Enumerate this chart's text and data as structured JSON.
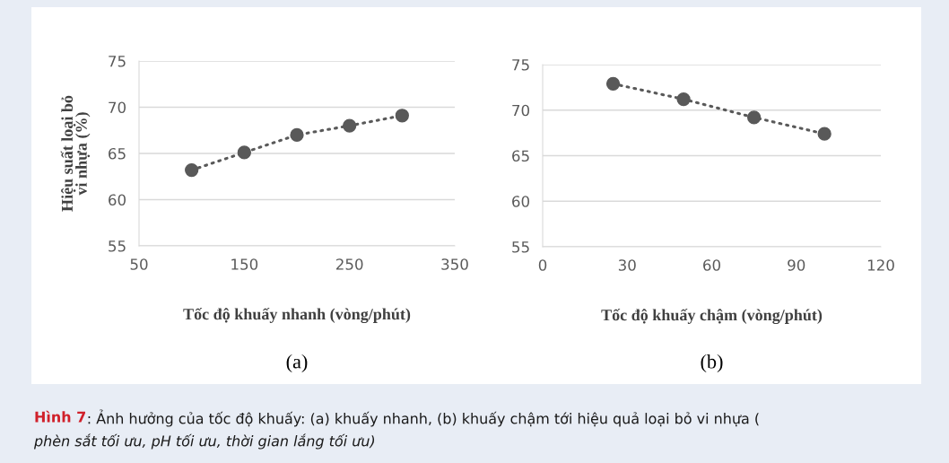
{
  "chart_data": [
    {
      "type": "line",
      "xlabel": "Tốc độ khuấy nhanh (vòng/phút)",
      "ylabel": "Hiệu suất loại bỏ\nvi nhựa (%)",
      "x": [
        100,
        150,
        200,
        250,
        300
      ],
      "series": [
        {
          "color": "#595959",
          "values": [
            63.2,
            65.1,
            67.0,
            68.0,
            69.1
          ],
          "marker": "circle",
          "line_style": "dotted"
        }
      ],
      "xlim": [
        50,
        350
      ],
      "xticks": [
        50,
        150,
        250,
        350
      ],
      "ylim": [
        55,
        75
      ],
      "yticks": [
        55,
        60,
        65,
        70,
        75
      ],
      "grid": "y",
      "annotations": [
        "(a)",
        "Hình 7",
        ": Ảnh hưởng của tốc độ khuấy: (a) khuấy nhanh, (b) khuấy chậm tới hiệu quả loại bỏ vi nhựa (",
        "phèn sắt tối ưu, pH tối ưu, thời gian lắng tối ưu)"
      ]
    },
    {
      "type": "line",
      "xlabel": "Tốc độ khuấy chậm (vòng/phút)",
      "x": [
        25,
        50,
        75,
        100
      ],
      "series": [
        {
          "color": "#595959",
          "values": [
            72.9,
            71.2,
            69.2,
            67.4
          ],
          "marker": "circle",
          "line_style": "dotted"
        }
      ],
      "xlim": [
        0,
        120
      ],
      "xticks": [
        0,
        30,
        60,
        90,
        120
      ],
      "ylim": [
        55,
        75
      ],
      "yticks": [
        55,
        60,
        65,
        70,
        75
      ],
      "grid": "y",
      "annotations": [
        "(b)"
      ]
    }
  ]
}
